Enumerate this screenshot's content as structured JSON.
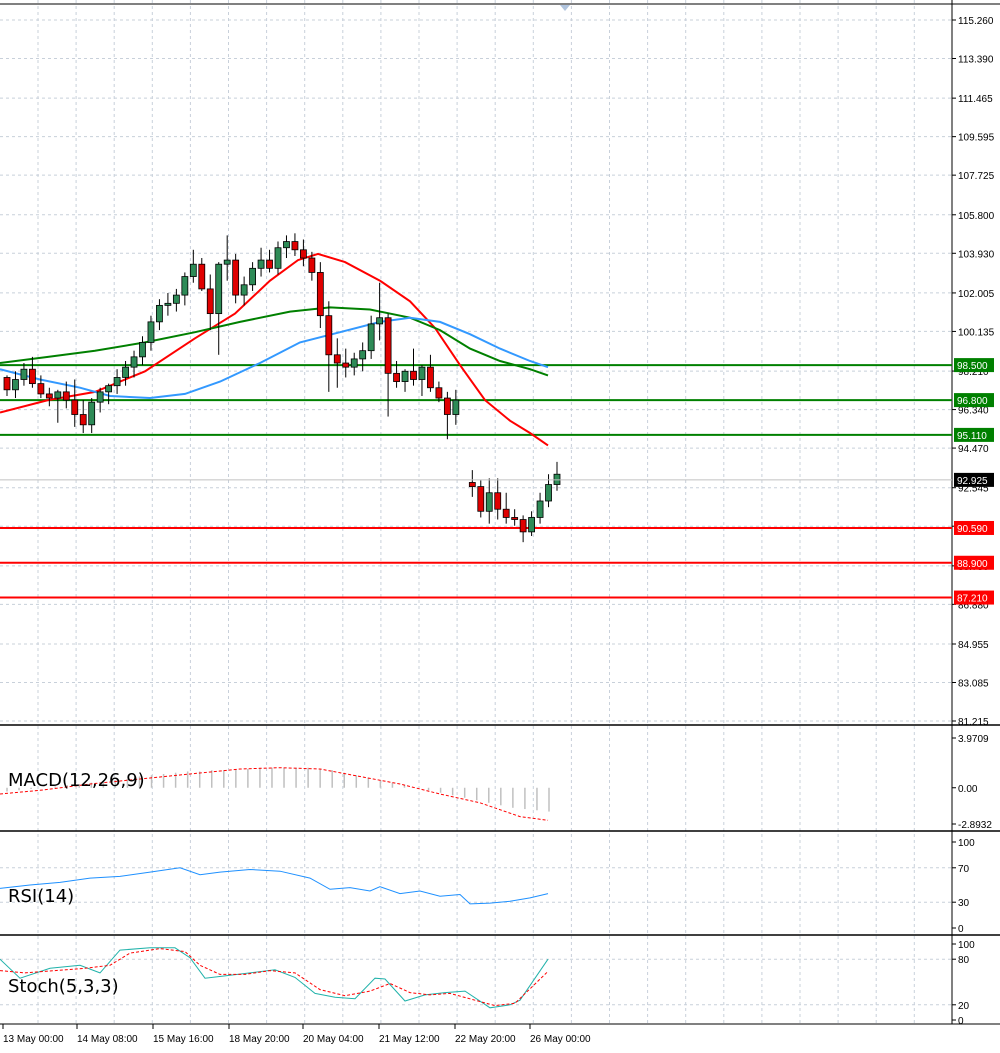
{
  "chart_data": {
    "type": "candlestick",
    "price_axis": {
      "ticks": [
        "115.260",
        "113.390",
        "111.465",
        "109.595",
        "107.725",
        "105.800",
        "103.930",
        "102.005",
        "100.135",
        "98.210",
        "96.340",
        "94.470",
        "92.545",
        "90.675",
        "88.750",
        "86.880",
        "84.955",
        "83.085",
        "81.215"
      ],
      "ylim": [
        81.215,
        115.26
      ]
    },
    "current_price": "92.925",
    "levels": [
      {
        "label": "98.500",
        "value": 98.5,
        "color": "#008000"
      },
      {
        "label": "96.800",
        "value": 96.8,
        "color": "#008000"
      },
      {
        "label": "95.110",
        "value": 95.11,
        "color": "#008000"
      },
      {
        "label": "90.590",
        "value": 90.59,
        "color": "#ff0000"
      },
      {
        "label": "88.900",
        "value": 88.9,
        "color": "#ff0000"
      },
      {
        "label": "87.210",
        "value": 87.21,
        "color": "#ff0000"
      }
    ],
    "time_labels": [
      "13 May 00:00",
      "14 May 08:00",
      "15 May 16:00",
      "18 May 20:00",
      "20 May 04:00",
      "21 May 12:00",
      "22 May 20:00",
      "26 May 00:00"
    ],
    "candles": [
      [
        97.9,
        98.0,
        97.0,
        97.3
      ],
      [
        97.3,
        98.2,
        96.9,
        97.8
      ],
      [
        97.8,
        98.6,
        97.5,
        98.3
      ],
      [
        98.3,
        98.9,
        97.4,
        97.6
      ],
      [
        97.6,
        98.0,
        96.9,
        97.1
      ],
      [
        97.1,
        97.4,
        96.5,
        96.9
      ],
      [
        96.9,
        97.3,
        95.7,
        97.2
      ],
      [
        97.2,
        97.7,
        96.4,
        96.8
      ],
      [
        96.8,
        97.8,
        95.5,
        96.1
      ],
      [
        96.1,
        96.8,
        95.2,
        95.6
      ],
      [
        95.6,
        96.9,
        95.2,
        96.7
      ],
      [
        96.7,
        97.4,
        96.2,
        97.2
      ],
      [
        97.2,
        97.6,
        96.6,
        97.5
      ],
      [
        97.5,
        98.3,
        97.1,
        97.9
      ],
      [
        97.9,
        98.7,
        97.5,
        98.4
      ],
      [
        98.4,
        99.2,
        97.9,
        98.9
      ],
      [
        98.9,
        99.9,
        98.5,
        99.6
      ],
      [
        99.6,
        100.9,
        99.2,
        100.6
      ],
      [
        100.6,
        101.7,
        100.2,
        101.4
      ],
      [
        101.4,
        102.0,
        100.9,
        101.5
      ],
      [
        101.5,
        102.2,
        101.1,
        101.9
      ],
      [
        101.9,
        103.0,
        101.4,
        102.8
      ],
      [
        102.8,
        104.1,
        102.5,
        103.4
      ],
      [
        103.4,
        103.7,
        102.1,
        102.2
      ],
      [
        102.2,
        102.9,
        100.2,
        101.0
      ],
      [
        101.0,
        103.5,
        99.0,
        103.4
      ],
      [
        103.4,
        104.8,
        102.6,
        103.6
      ],
      [
        103.6,
        103.9,
        101.5,
        101.9
      ],
      [
        101.9,
        102.8,
        101.4,
        102.4
      ],
      [
        102.4,
        103.5,
        102.1,
        103.2
      ],
      [
        103.2,
        104.2,
        102.8,
        103.6
      ],
      [
        103.6,
        104.1,
        103.0,
        103.2
      ],
      [
        103.2,
        104.5,
        102.9,
        104.2
      ],
      [
        104.2,
        104.8,
        103.7,
        104.5
      ],
      [
        104.5,
        104.9,
        103.8,
        104.1
      ],
      [
        104.1,
        104.6,
        103.3,
        103.7
      ],
      [
        103.7,
        104.0,
        102.6,
        103.0
      ],
      [
        103.0,
        103.5,
        100.3,
        100.9
      ],
      [
        100.9,
        101.6,
        97.2,
        99.0
      ],
      [
        99.0,
        99.8,
        97.4,
        98.6
      ],
      [
        98.6,
        99.3,
        97.9,
        98.4
      ],
      [
        98.4,
        99.1,
        98.0,
        98.8
      ],
      [
        98.8,
        99.6,
        98.2,
        99.2
      ],
      [
        99.2,
        100.9,
        98.8,
        100.5
      ],
      [
        100.5,
        102.5,
        99.7,
        100.8
      ],
      [
        100.8,
        101.0,
        96.0,
        98.1
      ],
      [
        98.1,
        98.7,
        97.4,
        97.7
      ],
      [
        97.7,
        98.3,
        97.2,
        98.2
      ],
      [
        98.2,
        99.3,
        97.5,
        97.8
      ],
      [
        97.8,
        98.5,
        97.0,
        98.4
      ],
      [
        98.4,
        99.0,
        97.2,
        97.4
      ],
      [
        97.4,
        97.7,
        96.7,
        96.9
      ],
      [
        96.9,
        97.2,
        94.9,
        96.1
      ],
      [
        96.1,
        97.3,
        95.6,
        96.8
      ],
      [
        92.8,
        93.4,
        92.1,
        92.6
      ],
      [
        92.6,
        92.9,
        91.1,
        91.4
      ],
      [
        91.4,
        93.0,
        90.8,
        92.3
      ],
      [
        92.3,
        93.0,
        91.0,
        91.5
      ],
      [
        91.5,
        92.3,
        90.8,
        91.1
      ],
      [
        91.1,
        91.5,
        90.7,
        91.0
      ],
      [
        91.0,
        91.2,
        89.9,
        90.4
      ],
      [
        90.4,
        91.4,
        90.2,
        91.1
      ],
      [
        91.1,
        92.3,
        90.8,
        91.9
      ],
      [
        91.9,
        93.2,
        91.6,
        92.7
      ],
      [
        92.7,
        93.8,
        92.4,
        93.2
      ]
    ],
    "moving_averages": [
      {
        "color": "#ff0000",
        "points": [
          [
            0,
            96.2
          ],
          [
            48,
            96.8
          ],
          [
            95,
            97.2
          ],
          [
            145,
            98.2
          ],
          [
            195,
            99.8
          ],
          [
            235,
            101.0
          ],
          [
            270,
            102.6
          ],
          [
            298,
            103.6
          ],
          [
            318,
            103.9
          ],
          [
            345,
            103.5
          ],
          [
            380,
            102.6
          ],
          [
            410,
            101.6
          ],
          [
            435,
            100.3
          ],
          [
            460,
            98.5
          ],
          [
            485,
            96.8
          ],
          [
            510,
            95.8
          ],
          [
            530,
            95.2
          ],
          [
            548,
            94.6
          ]
        ]
      },
      {
        "color": "#008000",
        "points": [
          [
            0,
            98.6
          ],
          [
            48,
            98.9
          ],
          [
            95,
            99.2
          ],
          [
            145,
            99.6
          ],
          [
            195,
            100.1
          ],
          [
            240,
            100.6
          ],
          [
            290,
            101.1
          ],
          [
            330,
            101.3
          ],
          [
            370,
            101.2
          ],
          [
            410,
            100.8
          ],
          [
            440,
            100.2
          ],
          [
            470,
            99.3
          ],
          [
            500,
            98.7
          ],
          [
            530,
            98.3
          ],
          [
            548,
            98.0
          ]
        ]
      },
      {
        "color": "#3399ff",
        "points": [
          [
            0,
            98.3
          ],
          [
            40,
            97.8
          ],
          [
            80,
            97.4
          ],
          [
            110,
            97.0
          ],
          [
            150,
            96.9
          ],
          [
            185,
            97.1
          ],
          [
            220,
            97.7
          ],
          [
            260,
            98.6
          ],
          [
            300,
            99.6
          ],
          [
            340,
            100.1
          ],
          [
            380,
            100.6
          ],
          [
            410,
            100.8
          ],
          [
            440,
            100.6
          ],
          [
            470,
            100.0
          ],
          [
            500,
            99.3
          ],
          [
            530,
            98.7
          ],
          [
            548,
            98.4
          ]
        ]
      }
    ],
    "indicators": [
      {
        "name": "MACD(12,26,9)",
        "ticks": [
          "3.9709",
          "0.00",
          "-2.8932"
        ],
        "ylim": [
          -2.8932,
          3.9709
        ],
        "histogram": [
          -0.3,
          -0.2,
          -0.1,
          0.0,
          0.1,
          0.2,
          0.3,
          0.4,
          0.5,
          0.6,
          0.7,
          0.9,
          1.0,
          1.1,
          1.2,
          1.3,
          1.3,
          1.4,
          1.4,
          1.5,
          1.5,
          1.6,
          1.6,
          1.6,
          1.6,
          1.6,
          1.5,
          1.4,
          1.2,
          1.0,
          0.8,
          0.6,
          0.4,
          0.2,
          0.0,
          -0.2,
          -0.4,
          -0.6,
          -0.8,
          -1.0,
          -1.2,
          -1.4,
          -1.6,
          -1.7,
          -1.8,
          -1.9
        ],
        "signal": [
          [
            0,
            -0.5
          ],
          [
            40,
            -0.2
          ],
          [
            90,
            0.3
          ],
          [
            140,
            0.7
          ],
          [
            190,
            1.1
          ],
          [
            240,
            1.5
          ],
          [
            280,
            1.6
          ],
          [
            320,
            1.5
          ],
          [
            360,
            0.9
          ],
          [
            400,
            0.3
          ],
          [
            440,
            -0.5
          ],
          [
            480,
            -1.2
          ],
          [
            520,
            -2.3
          ],
          [
            548,
            -2.6
          ]
        ]
      },
      {
        "name": "RSI(14)",
        "ticks": [
          "100",
          "70",
          "30",
          "0"
        ],
        "ylim": [
          0,
          100
        ],
        "line": [
          [
            0,
            46
          ],
          [
            30,
            50
          ],
          [
            60,
            53
          ],
          [
            90,
            58
          ],
          [
            120,
            60
          ],
          [
            150,
            65
          ],
          [
            180,
            70
          ],
          [
            200,
            62
          ],
          [
            220,
            65
          ],
          [
            250,
            68
          ],
          [
            280,
            66
          ],
          [
            310,
            58
          ],
          [
            330,
            45
          ],
          [
            350,
            47
          ],
          [
            370,
            43
          ],
          [
            380,
            48
          ],
          [
            400,
            40
          ],
          [
            420,
            43
          ],
          [
            440,
            37
          ],
          [
            460,
            39
          ],
          [
            470,
            28
          ],
          [
            490,
            29
          ],
          [
            510,
            31
          ],
          [
            530,
            35
          ],
          [
            548,
            40
          ]
        ]
      },
      {
        "name": "Stoch(5,3,3)",
        "ticks": [
          "100",
          "80",
          "20",
          "0"
        ],
        "ylim": [
          0,
          100
        ],
        "main": [
          [
            0,
            80
          ],
          [
            20,
            55
          ],
          [
            50,
            68
          ],
          [
            80,
            72
          ],
          [
            100,
            62
          ],
          [
            120,
            92
          ],
          [
            150,
            95
          ],
          [
            175,
            95
          ],
          [
            190,
            82
          ],
          [
            205,
            55
          ],
          [
            225,
            58
          ],
          [
            250,
            62
          ],
          [
            275,
            66
          ],
          [
            295,
            56
          ],
          [
            315,
            35
          ],
          [
            335,
            30
          ],
          [
            355,
            28
          ],
          [
            375,
            55
          ],
          [
            385,
            54
          ],
          [
            405,
            25
          ],
          [
            425,
            33
          ],
          [
            445,
            36
          ],
          [
            465,
            38
          ],
          [
            490,
            16
          ],
          [
            510,
            20
          ],
          [
            520,
            26
          ],
          [
            548,
            80
          ]
        ],
        "signal": [
          [
            0,
            65
          ],
          [
            25,
            62
          ],
          [
            55,
            65
          ],
          [
            85,
            68
          ],
          [
            110,
            72
          ],
          [
            130,
            88
          ],
          [
            160,
            94
          ],
          [
            185,
            90
          ],
          [
            200,
            72
          ],
          [
            220,
            60
          ],
          [
            245,
            60
          ],
          [
            270,
            65
          ],
          [
            295,
            62
          ],
          [
            320,
            40
          ],
          [
            345,
            32
          ],
          [
            370,
            38
          ],
          [
            390,
            48
          ],
          [
            410,
            36
          ],
          [
            430,
            33
          ],
          [
            450,
            35
          ],
          [
            475,
            26
          ],
          [
            495,
            19
          ],
          [
            515,
            22
          ],
          [
            548,
            64
          ]
        ]
      }
    ]
  }
}
